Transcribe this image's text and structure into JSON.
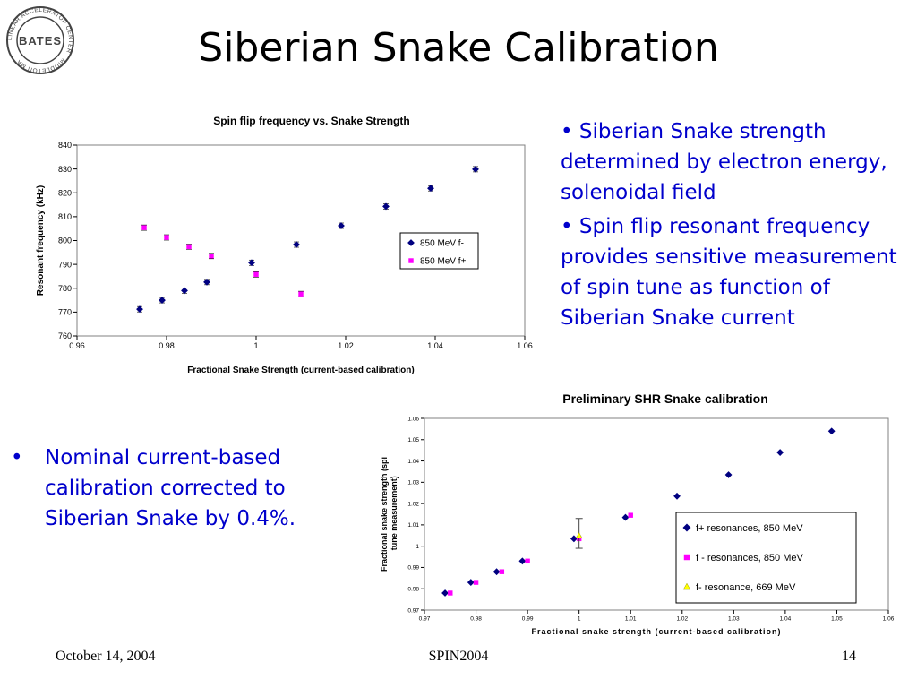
{
  "slide": {
    "title": "Siberian Snake Calibration",
    "right_bullets": [
      "• Siberian Snake strength determined by electron energy, solenoidal field",
      "• Spin flip resonant frequency provides sensitive measurement of spin tune as function of Siberian Snake current"
    ],
    "left_bullet_marker": "•",
    "left_bullets": [
      "Nominal current-based calibration corrected to Siberian Snake  by 0.4%."
    ],
    "footer": {
      "date": "October 14, 2004",
      "conference": "SPIN2004",
      "page": "14"
    },
    "logo": {
      "type": "circular-seal",
      "text": "LINEAR ACCELERATOR CENTER · MIDDLETON MA",
      "center_text": "BATES"
    }
  },
  "chart_data": [
    {
      "type": "scatter",
      "title": "Spin flip frequency vs. Snake Strength",
      "xlabel": "Fractional Snake Strength (current-based calibration)",
      "ylabel": "Resonant frequency (kHz)",
      "xlim": [
        0.96,
        1.06
      ],
      "ylim": [
        760,
        840
      ],
      "x_ticks": [
        "0.96",
        "0.98",
        "1",
        "1.02",
        "1.04",
        "1.06"
      ],
      "y_ticks": [
        "760",
        "770",
        "780",
        "790",
        "800",
        "810",
        "820",
        "830",
        "840"
      ],
      "grid": false,
      "legend": "right",
      "series": [
        {
          "name": "850 MeV f-",
          "marker": "diamond",
          "color": "#000080",
          "x": [
            0.974,
            0.979,
            0.984,
            0.989,
            0.999,
            1.009,
            1.019,
            1.029,
            1.039,
            1.049
          ],
          "y": [
            771.2,
            775.0,
            779.0,
            782.6,
            790.7,
            798.3,
            806.2,
            814.3,
            821.9,
            829.9
          ]
        },
        {
          "name": "850 MeV f+",
          "marker": "square",
          "color": "#ff00ff",
          "x": [
            0.975,
            0.98,
            0.985,
            0.99,
            1.0,
            1.01
          ],
          "y": [
            805.4,
            801.3,
            797.4,
            793.5,
            785.8,
            777.6
          ]
        }
      ]
    },
    {
      "type": "scatter",
      "title": "Preliminary SHR Snake calibration",
      "xlabel": "Fractional snake strength (current-based calibration)",
      "ylabel": "Fractional snake strength (spin tune measurement)",
      "xlim": [
        0.97,
        1.06
      ],
      "ylim": [
        0.97,
        1.06
      ],
      "x_ticks": [
        "0.97",
        "0.98",
        "0.99",
        "1",
        "1.01",
        "1.02",
        "1.03",
        "1.04",
        "1.05",
        "1.06"
      ],
      "y_ticks": [
        "0.97",
        "0.98",
        "0.99",
        "1",
        "1.01",
        "1.02",
        "1.03",
        "1.04",
        "1.05",
        "1.06"
      ],
      "grid": false,
      "legend": "bottom-right",
      "series": [
        {
          "name": "f+ resonances, 850 MeV",
          "marker": "diamond",
          "color": "#000080",
          "x": [
            0.974,
            0.979,
            0.984,
            0.989,
            0.999,
            1.009,
            1.019,
            1.029,
            1.039,
            1.049
          ],
          "y": [
            0.978,
            0.983,
            0.988,
            0.993,
            1.0035,
            1.0135,
            1.0235,
            1.0335,
            1.044,
            1.054
          ]
        },
        {
          "name": "f - resonances, 850 MeV",
          "marker": "square",
          "color": "#ff00ff",
          "x": [
            0.975,
            0.98,
            0.985,
            0.99,
            1.0,
            1.01
          ],
          "y": [
            0.978,
            0.983,
            0.988,
            0.993,
            1.0035,
            1.0145
          ]
        },
        {
          "name": "f- resonance, 669 MeV",
          "marker": "triangle",
          "color": "#ffff00",
          "x": [
            1.0
          ],
          "y": [
            1.005
          ],
          "error_bar": [
            0.999,
            1.013
          ]
        }
      ]
    }
  ]
}
